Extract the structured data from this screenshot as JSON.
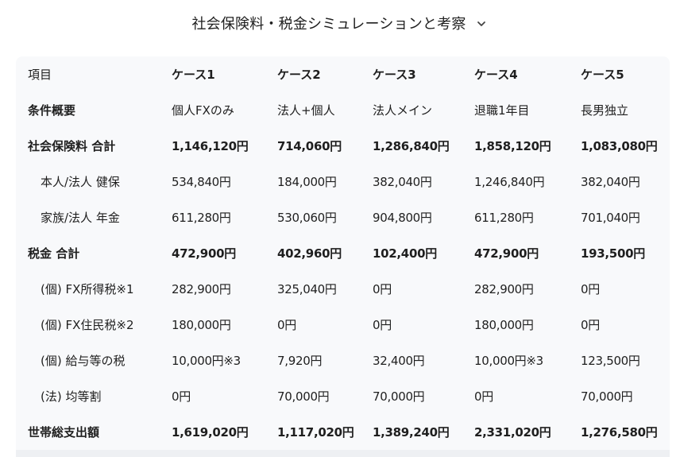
{
  "header": {
    "title": "社会保険料・税金シミュレーションと考察",
    "toggle_icon": "chevron-down-icon"
  },
  "table": {
    "columns": [
      "項目",
      "ケース1",
      "ケース2",
      "ケース3",
      "ケース4",
      "ケース5"
    ],
    "rows": [
      {
        "label": "条件概要",
        "values": [
          "個人FXのみ",
          "法人+個人",
          "法人メイン",
          "退職1年目",
          "長男独立"
        ]
      },
      {
        "label": "社会保険料 合計",
        "values": [
          "1,146,120円",
          "714,060円",
          "1,286,840円",
          "1,858,120円",
          "1,083,080円"
        ]
      },
      {
        "label": "本人/法人 健保",
        "values": [
          "534,840円",
          "184,000円",
          "382,040円",
          "1,246,840円",
          "382,040円"
        ]
      },
      {
        "label": "家族/法人 年金",
        "values": [
          "611,280円",
          "530,060円",
          "904,800円",
          "611,280円",
          "701,040円"
        ]
      },
      {
        "label": "税金 合計",
        "values": [
          "472,900円",
          "402,960円",
          "102,400円",
          "472,900円",
          "193,500円"
        ]
      },
      {
        "label": "(個) FX所得税※1",
        "values": [
          "282,900円",
          "325,040円",
          "0円",
          "282,900円",
          "0円"
        ]
      },
      {
        "label": "(個) FX住民税※2",
        "values": [
          "180,000円",
          "0円",
          "0円",
          "180,000円",
          "0円"
        ]
      },
      {
        "label": "(個) 給与等の税",
        "values": [
          "10,000円※3",
          "7,920円",
          "32,400円",
          "10,000円※3",
          "123,500円"
        ]
      },
      {
        "label": "(法) 均等割",
        "values": [
          "0円",
          "70,000円",
          "70,000円",
          "0円",
          "70,000円"
        ]
      },
      {
        "label": "世帯総支出額",
        "values": [
          "1,619,020円",
          "1,117,020円",
          "1,389,240円",
          "2,331,020円",
          "1,276,580円"
        ]
      }
    ]
  }
}
